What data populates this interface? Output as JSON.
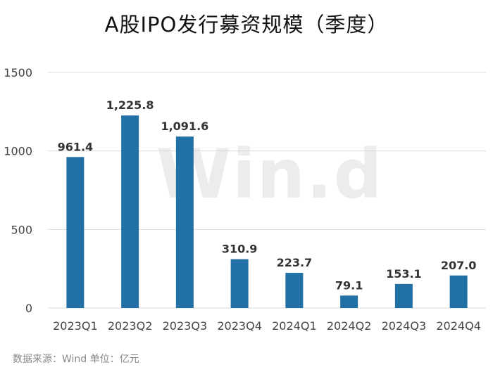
{
  "title": "A股IPO发行募资规模（季度）",
  "source_note": "数据来源：Wind 单位：亿元",
  "watermark": "Win.d",
  "colors": {
    "bar": "#2171a7",
    "grid": "#d9d9d9",
    "axis_text": "#444444"
  },
  "chart_data": {
    "type": "bar",
    "categories": [
      "2023Q1",
      "2023Q2",
      "2023Q3",
      "2023Q4",
      "2024Q1",
      "2024Q2",
      "2024Q3",
      "2024Q4"
    ],
    "values": [
      961.4,
      1225.8,
      1091.6,
      310.9,
      223.7,
      79.1,
      153.1,
      207.0
    ],
    "value_labels": [
      "961.4",
      "1,225.8",
      "1,091.6",
      "310.9",
      "223.7",
      "79.1",
      "153.1",
      "207.0"
    ],
    "ylim": [
      0,
      1500
    ],
    "yticks": [
      0,
      500,
      1000,
      1500
    ],
    "grid": true
  }
}
